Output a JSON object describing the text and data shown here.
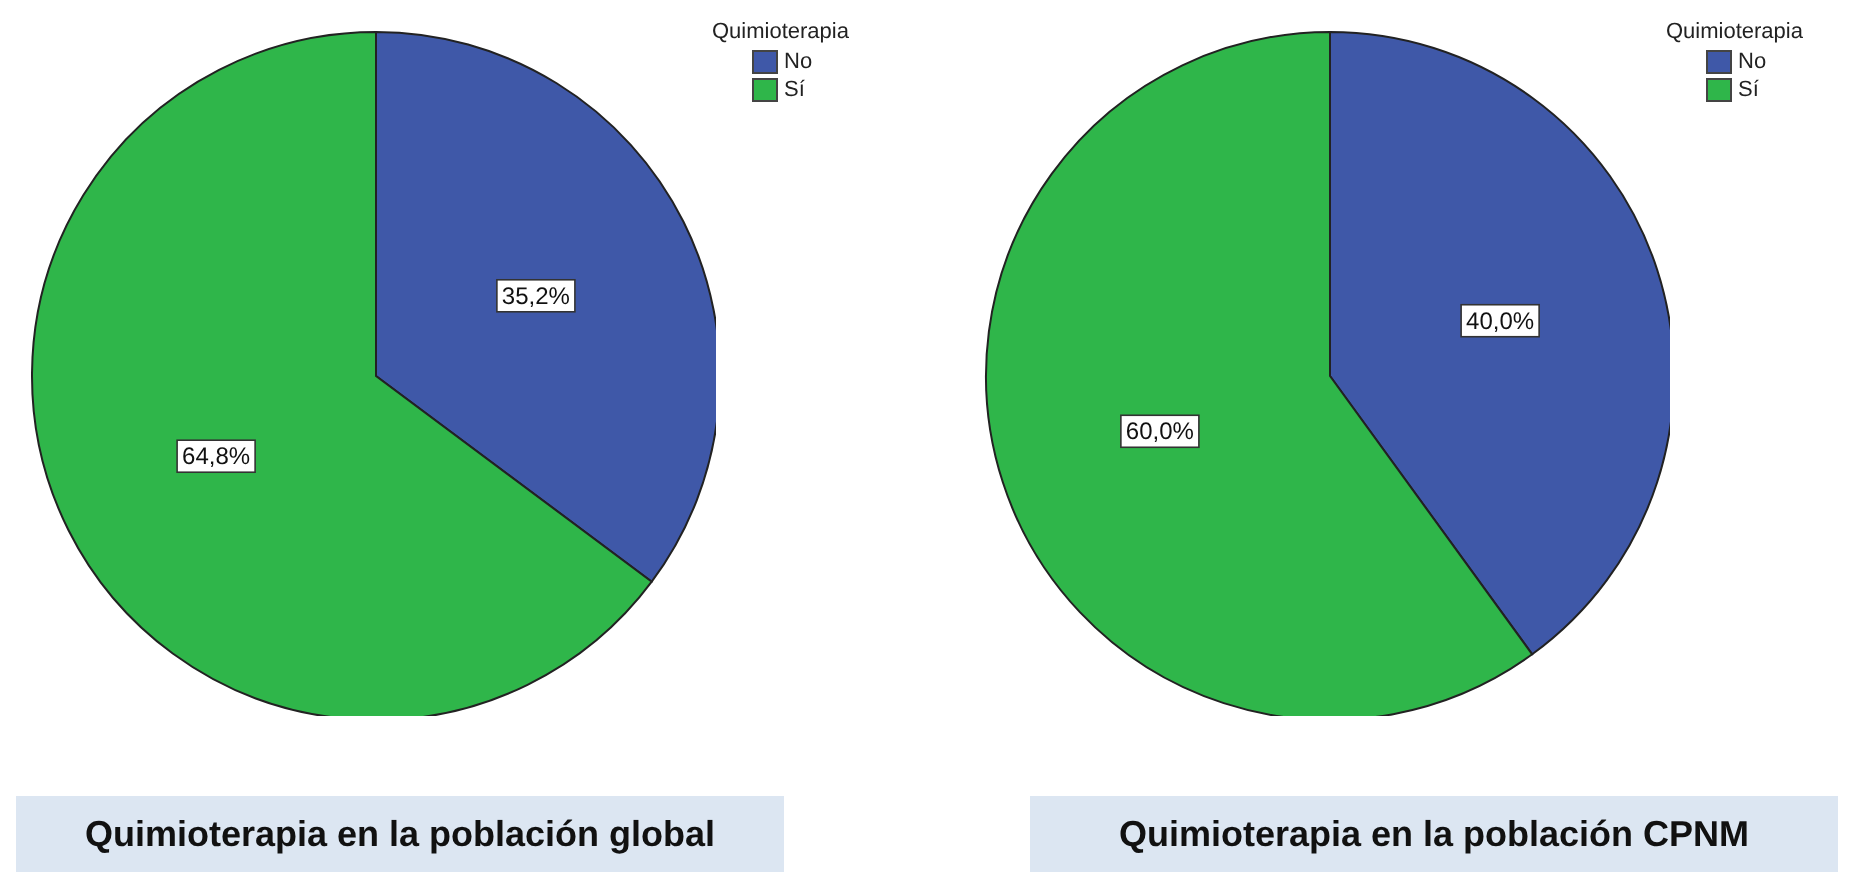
{
  "chart_data": [
    {
      "type": "pie",
      "title": "Quimioterapia en la población global",
      "legend_title": "Quimioterapia",
      "legend": "top right",
      "categories": [
        "No",
        "Sí"
      ],
      "values": [
        35.2,
        64.8
      ],
      "colors": [
        "#3f58a8",
        "#2fb64a"
      ],
      "value_labels": [
        "35,2%",
        "64,8%"
      ]
    },
    {
      "type": "pie",
      "title": "Quimioterapia en la población CPNM",
      "legend_title": "Quimioterapia",
      "legend": "top right",
      "categories": [
        "No",
        "Sí"
      ],
      "values": [
        40.0,
        60.0
      ],
      "colors": [
        "#3f58a8",
        "#2fb64a"
      ],
      "value_labels": [
        "40,0%",
        "60,0%"
      ]
    }
  ]
}
